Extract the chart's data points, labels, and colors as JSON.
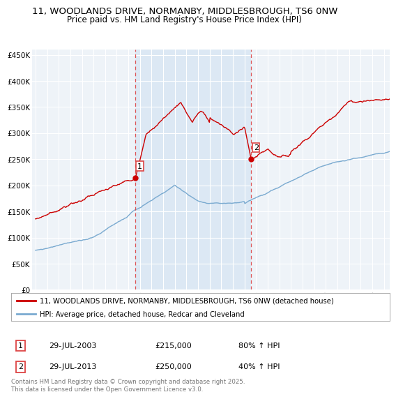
{
  "title1": "11, WOODLANDS DRIVE, NORMANBY, MIDDLESBROUGH, TS6 0NW",
  "title2": "Price paid vs. HM Land Registry's House Price Index (HPI)",
  "legend_line1": "11, WOODLANDS DRIVE, NORMANBY, MIDDLESBROUGH, TS6 0NW (detached house)",
  "legend_line2": "HPI: Average price, detached house, Redcar and Cleveland",
  "sale1_label": "1",
  "sale1_date": "29-JUL-2003",
  "sale1_price": "£215,000",
  "sale1_hpi": "80% ↑ HPI",
  "sale2_label": "2",
  "sale2_date": "29-JUL-2013",
  "sale2_price": "£250,000",
  "sale2_hpi": "40% ↑ HPI",
  "red_color": "#cc0000",
  "blue_color": "#7aaad0",
  "dashed_red": "#dd4444",
  "background_plot": "#eef3f8",
  "background_highlight": "#dce8f4",
  "background_outer": "#ffffff",
  "ylim": [
    0,
    460000
  ],
  "yticks": [
    0,
    50000,
    100000,
    150000,
    200000,
    250000,
    300000,
    350000,
    400000,
    450000
  ],
  "footer": "Contains HM Land Registry data © Crown copyright and database right 2025.\nThis data is licensed under the Open Government Licence v3.0.",
  "sale1_year": 2003.58,
  "sale2_year": 2013.58,
  "sale1_value": 215000,
  "sale2_value": 250000,
  "xmin": 1995,
  "xmax": 2025
}
